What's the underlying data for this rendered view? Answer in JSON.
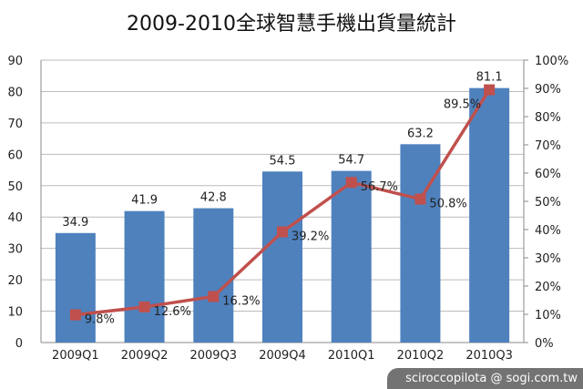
{
  "chart_data": {
    "type": "bar+line",
    "title": "2009-2010全球智慧手機出貨量統計",
    "categories": [
      "2009Q1",
      "2009Q2",
      "2009Q3",
      "2009Q4",
      "2010Q1",
      "2010Q2",
      "2010Q3"
    ],
    "series": [
      {
        "type": "bar",
        "axis": "left",
        "values": [
          34.9,
          41.9,
          42.8,
          54.5,
          54.7,
          63.2,
          81.1
        ],
        "labels": [
          "34.9",
          "41.9",
          "42.8",
          "54.5",
          "54.7",
          "63.2",
          "81.1"
        ],
        "color": "#4f81bd"
      },
      {
        "type": "line",
        "axis": "right",
        "values": [
          9.8,
          12.6,
          16.3,
          39.2,
          56.7,
          50.8,
          89.5
        ],
        "labels": [
          "9.8%",
          "12.6%",
          "16.3%",
          "39.2%",
          "56.7%",
          "50.8%",
          "89.5%"
        ],
        "color": "#c0504d"
      }
    ],
    "ylim_left": [
      0,
      90
    ],
    "yticks_left": [
      "0",
      "10",
      "20",
      "30",
      "40",
      "50",
      "60",
      "70",
      "80",
      "90"
    ],
    "ylim_right": [
      0,
      100
    ],
    "yticks_right": [
      "0%",
      "10%",
      "20%",
      "30%",
      "40%",
      "50%",
      "60%",
      "70%",
      "80%",
      "90%",
      "100%"
    ],
    "grid": true,
    "legend": "none"
  },
  "watermark": "sciroccopilota @ sogi.com.tw"
}
